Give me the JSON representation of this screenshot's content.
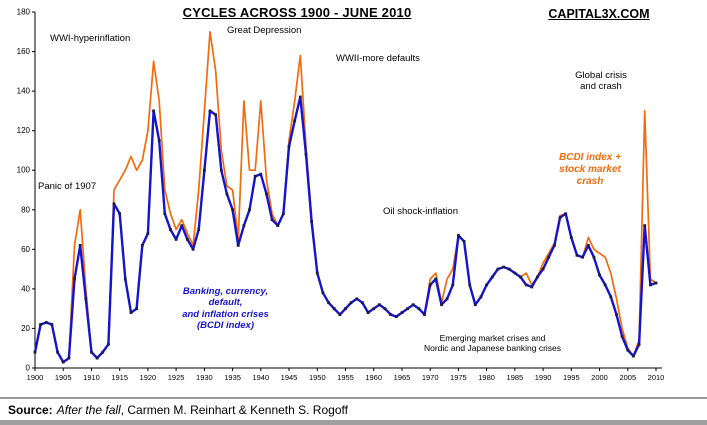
{
  "header": {
    "title": "CYCLES ACROSS 1900 - JUNE 2010",
    "brand": "CAPITAL3X.COM"
  },
  "annotations": {
    "wwi": "WWI-hyperinflation",
    "great_depression": "Great Depression",
    "wwii": "WWII-more defaults",
    "panic_1907": "Panic of 1907",
    "oil_shock": "Oil shock-inflation",
    "global_crisis": [
      "Global crisis",
      "and crash"
    ],
    "bcdi_plus": [
      "BCDI index +",
      "stock market",
      "crash"
    ],
    "bcdi": [
      "Banking, currency,",
      "default,",
      "and inflation crises",
      "(BCDI index)"
    ],
    "emerging": [
      "Emerging market crises and",
      "Nordic and Japanese banking crises"
    ]
  },
  "source": {
    "label": "Source:",
    "work": "After the fall",
    "authors": ", Carmen M. Reinhart & Kenneth S. Rogoff"
  },
  "colors": {
    "blue": "#1414cc",
    "orange": "#f26b0c",
    "marker": "#1b1b4d"
  },
  "chart_data": {
    "type": "line",
    "title": "CYCLES ACROSS 1900 - JUNE 2010",
    "xlabel": "",
    "ylabel": "",
    "x_start": 1900,
    "x_end": 2010,
    "x_step": 1,
    "ylim": [
      0,
      180
    ],
    "grid": false,
    "legend_position": "in-chart text annotations",
    "xticks": [
      1900,
      1905,
      1910,
      1915,
      1920,
      1925,
      1930,
      1935,
      1940,
      1945,
      1950,
      1955,
      1960,
      1965,
      1970,
      1975,
      1980,
      1985,
      1990,
      1995,
      2000,
      2005,
      2010
    ],
    "yticks": [
      0,
      20,
      40,
      60,
      80,
      100,
      120,
      140,
      160,
      180
    ],
    "series": [
      {
        "name": "Banking, currency, default, and inflation crises (BCDI index)",
        "color": "#1414cc",
        "values": [
          8,
          22,
          23,
          22,
          8,
          3,
          5,
          45,
          62,
          35,
          8,
          5,
          8,
          12,
          83,
          78,
          45,
          28,
          30,
          62,
          68,
          130,
          115,
          78,
          70,
          65,
          72,
          65,
          60,
          70,
          100,
          130,
          128,
          100,
          88,
          80,
          62,
          72,
          80,
          97,
          98,
          88,
          75,
          72,
          78,
          112,
          125,
          137,
          108,
          74,
          48,
          38,
          33,
          30,
          27,
          30,
          33,
          35,
          33,
          28,
          30,
          32,
          30,
          27,
          26,
          28,
          30,
          32,
          30,
          27,
          42,
          45,
          32,
          35,
          42,
          67,
          64,
          42,
          32,
          36,
          42,
          46,
          50,
          51,
          50,
          48,
          46,
          42,
          41,
          46,
          50,
          56,
          62,
          76,
          78,
          66,
          57,
          56,
          62,
          56,
          47,
          42,
          36,
          27,
          16,
          9,
          6,
          12,
          72,
          42,
          43
        ]
      },
      {
        "name": "BCDI index + stock market crash",
        "color": "#f26b0c",
        "values": [
          8,
          22,
          23,
          22,
          8,
          3,
          5,
          62,
          80,
          40,
          8,
          5,
          8,
          12,
          90,
          95,
          100,
          107,
          100,
          105,
          120,
          155,
          135,
          90,
          78,
          70,
          75,
          68,
          62,
          90,
          130,
          170,
          150,
          110,
          92,
          90,
          65,
          135,
          100,
          100,
          135,
          95,
          78,
          72,
          78,
          115,
          135,
          158,
          112,
          76,
          48,
          38,
          33,
          30,
          27,
          30,
          33,
          35,
          33,
          28,
          30,
          32,
          30,
          27,
          26,
          28,
          30,
          32,
          30,
          27,
          45,
          48,
          33,
          45,
          50,
          67,
          64,
          42,
          32,
          36,
          42,
          46,
          50,
          51,
          50,
          48,
          46,
          48,
          42,
          46,
          53,
          58,
          63,
          77,
          78,
          66,
          57,
          56,
          66,
          60,
          58,
          56,
          48,
          35,
          20,
          10,
          6,
          14,
          130,
          45,
          43
        ]
      }
    ]
  }
}
